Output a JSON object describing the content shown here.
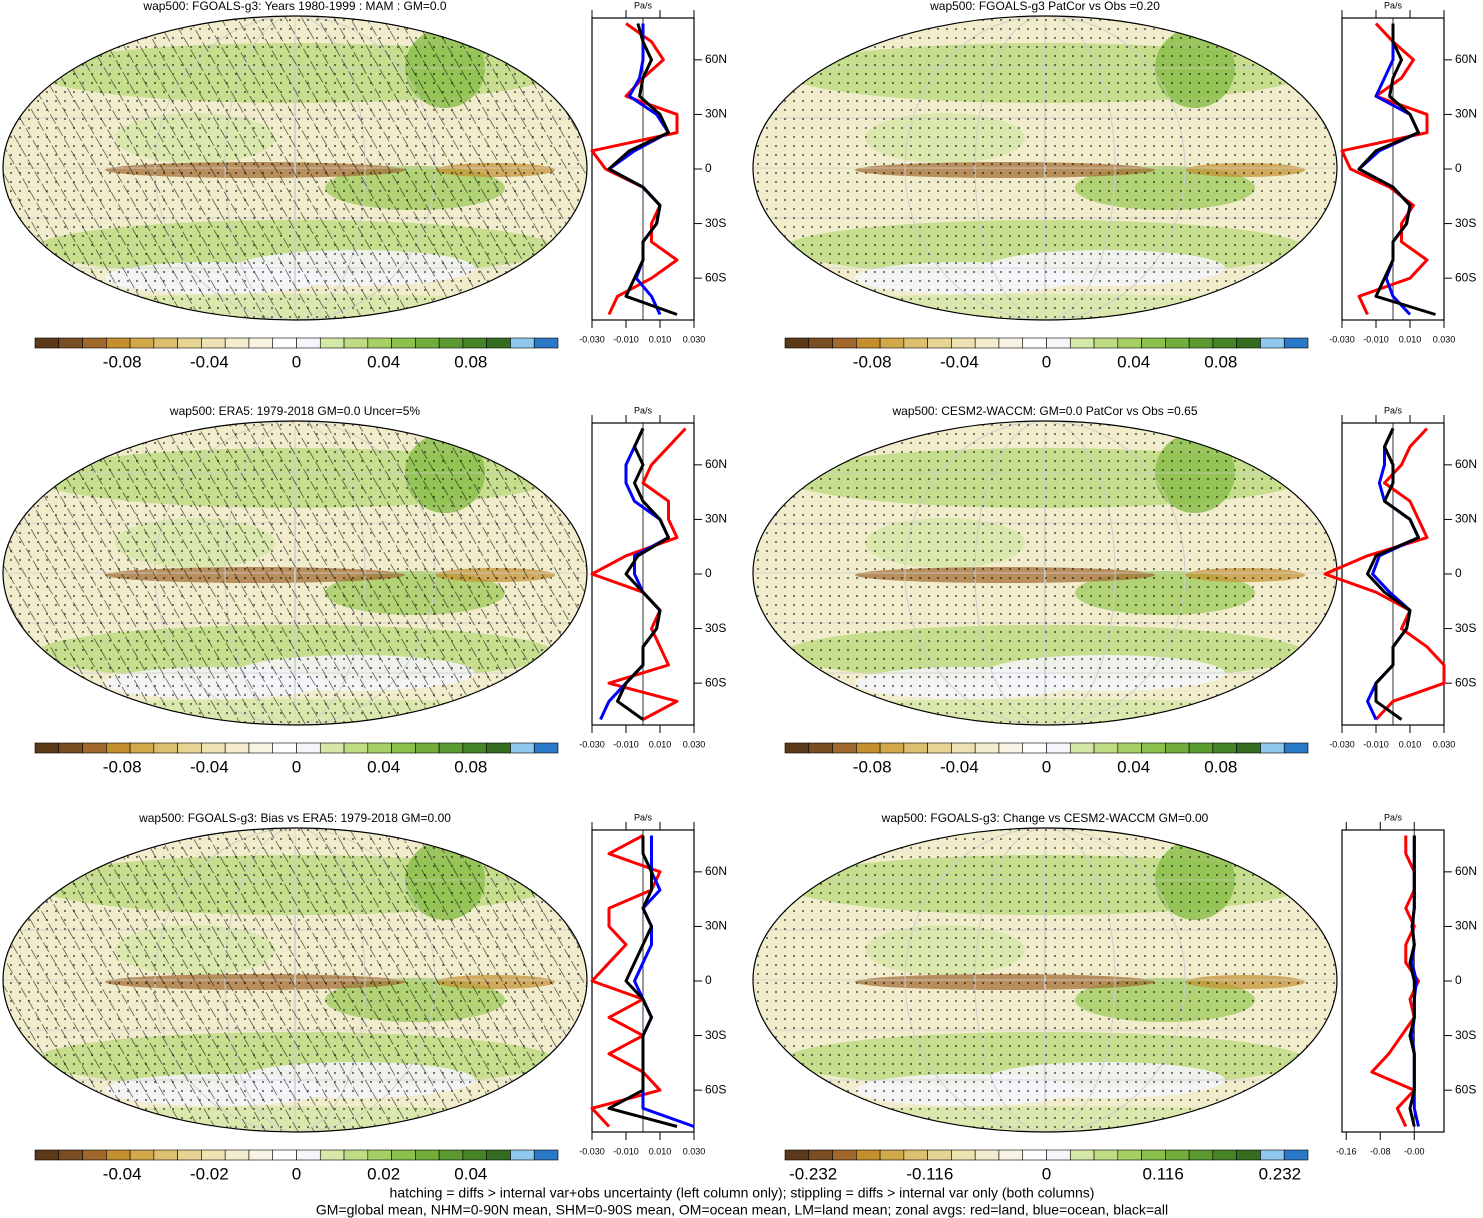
{
  "panels": [
    {
      "title": "wap500: FGOALS-g3: Years 1980-1999 : MAM : GM=0.0",
      "col": 0,
      "row": 0,
      "hatching": true,
      "cbar": {
        "lim": [
          -0.12,
          0.12
        ],
        "ticks": [
          -0.08,
          -0.04,
          0,
          0.04,
          0.08
        ]
      },
      "profile": {
        "unit": "Pa/s",
        "xlim": [
          -0.03,
          0.03
        ],
        "xticks": [
          {
            "value": -0.03,
            "label": "-0.030"
          },
          {
            "value": -0.01,
            "label": "-0.010"
          },
          {
            "value": 0.01,
            "label": "0.010"
          },
          {
            "value": 0.03,
            "label": "0.030"
          }
        ],
        "ylim": [
          -83,
          83
        ],
        "yticks": [
          {
            "value": 60,
            "label": "60N"
          },
          {
            "value": 30,
            "label": "30N"
          },
          0,
          {
            "value": -30,
            "label": "30S"
          },
          {
            "value": -60,
            "label": "60S"
          }
        ],
        "lat": [
          -80,
          -70,
          -60,
          -50,
          -40,
          -30,
          -20,
          -10,
          0,
          10,
          20,
          30,
          40,
          50,
          60,
          70,
          80
        ],
        "series": [
          {
            "color": "#ff0000",
            "values": [
              -0.02,
              -0.015,
              0.005,
              0.02,
              0.005,
              0.005,
              0.01,
              0.0,
              -0.022,
              -0.03,
              0.02,
              0.02,
              -0.01,
              0.0,
              0.012,
              0.005,
              -0.01
            ]
          },
          {
            "color": "#0000ff",
            "values": [
              0.01,
              0.005,
              -0.004,
              0.0,
              0.0,
              0.008,
              0.01,
              0.0,
              -0.02,
              -0.005,
              0.015,
              0.008,
              -0.008,
              -0.002,
              0.0,
              0.0,
              0.0
            ]
          },
          {
            "color": "#000000",
            "values": [
              0.02,
              -0.01,
              -0.005,
              0.0,
              0.0,
              0.008,
              0.01,
              0.0,
              -0.02,
              -0.008,
              0.015,
              0.01,
              -0.002,
              0.0,
              0.005,
              0.0,
              -0.003
            ]
          }
        ]
      }
    },
    {
      "title": "wap500: FGOALS-g3 PatCor vs Obs =0.20",
      "col": 1,
      "row": 0,
      "hatching": false,
      "cbar": {
        "lim": [
          -0.12,
          0.12
        ],
        "ticks": [
          -0.08,
          -0.04,
          0,
          0.04,
          0.08
        ]
      },
      "profile": {
        "unit": "Pa/s",
        "xlim": [
          -0.03,
          0.03
        ],
        "xticks": [
          {
            "value": -0.03,
            "label": "-0.030"
          },
          {
            "value": -0.01,
            "label": "-0.010"
          },
          {
            "value": 0.01,
            "label": "0.010"
          },
          {
            "value": 0.03,
            "label": "0.030"
          }
        ],
        "ylim": [
          -83,
          83
        ],
        "yticks": [
          {
            "value": 60,
            "label": "60N"
          },
          {
            "value": 30,
            "label": "30N"
          },
          0,
          {
            "value": -30,
            "label": "30S"
          },
          {
            "value": -60,
            "label": "60S"
          }
        ],
        "lat": [
          -80,
          -70,
          -60,
          -50,
          -40,
          -30,
          -20,
          -10,
          0,
          10,
          20,
          30,
          40,
          50,
          60,
          70,
          80
        ],
        "series": [
          {
            "color": "#ff0000",
            "values": [
              -0.015,
              -0.02,
              0.01,
              0.02,
              0.005,
              0.005,
              0.012,
              -0.002,
              -0.025,
              -0.03,
              0.02,
              0.02,
              -0.01,
              0.005,
              0.012,
              0.0,
              -0.01
            ]
          },
          {
            "color": "#0000ff",
            "values": [
              0.01,
              0.0,
              -0.004,
              0.0,
              0.0,
              0.008,
              0.01,
              0.0,
              -0.02,
              -0.008,
              0.015,
              0.01,
              -0.01,
              -0.005,
              0.0,
              0.0,
              0.0
            ]
          },
          {
            "color": "#000000",
            "values": [
              0.025,
              -0.01,
              -0.005,
              0.0,
              0.0,
              0.008,
              0.01,
              0.0,
              -0.02,
              -0.01,
              0.015,
              0.01,
              -0.002,
              0.0,
              0.005,
              0.0,
              0.0
            ]
          }
        ]
      }
    },
    {
      "title": "wap500: ERA5: 1979-2018 GM=0.0 Uncer=5%",
      "col": 0,
      "row": 1,
      "hatching": true,
      "cbar": {
        "lim": [
          -0.12,
          0.12
        ],
        "ticks": [
          -0.08,
          -0.04,
          0,
          0.04,
          0.08
        ]
      },
      "profile": {
        "unit": "Pa/s",
        "xlim": [
          -0.03,
          0.03
        ],
        "xticks": [
          {
            "value": -0.03,
            "label": "-0.030"
          },
          {
            "value": -0.01,
            "label": "-0.010"
          },
          {
            "value": 0.01,
            "label": "0.010"
          },
          {
            "value": 0.03,
            "label": "0.030"
          }
        ],
        "ylim": [
          -83,
          83
        ],
        "yticks": [
          {
            "value": 60,
            "label": "60N"
          },
          {
            "value": 30,
            "label": "30N"
          },
          0,
          {
            "value": -30,
            "label": "30S"
          },
          {
            "value": -60,
            "label": "60S"
          }
        ],
        "lat": [
          -80,
          -70,
          -60,
          -50,
          -40,
          -30,
          -20,
          -10,
          0,
          10,
          20,
          30,
          40,
          50,
          60,
          70,
          80
        ],
        "series": [
          {
            "color": "#ff0000",
            "values": [
              0.0,
              0.02,
              -0.02,
              0.015,
              0.01,
              0.005,
              0.01,
              0.0,
              -0.03,
              -0.01,
              0.02,
              0.015,
              0.015,
              0.0,
              0.005,
              0.015,
              0.025
            ]
          },
          {
            "color": "#0000ff",
            "values": [
              -0.025,
              -0.02,
              -0.01,
              0.0,
              0.0,
              0.008,
              0.01,
              0.0,
              -0.005,
              -0.005,
              0.015,
              0.01,
              -0.005,
              -0.01,
              -0.01,
              -0.005,
              0.0
            ]
          },
          {
            "color": "#000000",
            "values": [
              0.0,
              -0.015,
              -0.01,
              0.0,
              0.0,
              0.008,
              0.01,
              0.0,
              -0.01,
              -0.003,
              0.015,
              0.01,
              0.0,
              -0.005,
              0.0,
              -0.005,
              0.0
            ]
          }
        ]
      }
    },
    {
      "title": "wap500: CESM2-WACCM: GM=0.0 PatCor vs Obs =0.65",
      "col": 1,
      "row": 1,
      "hatching": false,
      "cbar": {
        "lim": [
          -0.12,
          0.12
        ],
        "ticks": [
          -0.08,
          -0.04,
          0,
          0.04,
          0.08
        ]
      },
      "profile": {
        "unit": "Pa/s",
        "xlim": [
          -0.03,
          0.03
        ],
        "xticks": [
          {
            "value": -0.03,
            "label": "-0.030"
          },
          {
            "value": -0.01,
            "label": "-0.010"
          },
          {
            "value": 0.01,
            "label": "0.010"
          },
          {
            "value": 0.03,
            "label": "0.030"
          }
        ],
        "ylim": [
          -83,
          83
        ],
        "yticks": [
          {
            "value": 60,
            "label": "60N"
          },
          {
            "value": 30,
            "label": "30N"
          },
          0,
          {
            "value": -30,
            "label": "30S"
          },
          {
            "value": -60,
            "label": "60S"
          }
        ],
        "lat": [
          -80,
          -70,
          -60,
          -50,
          -40,
          -30,
          -20,
          -10,
          0,
          10,
          20,
          30,
          40,
          50,
          60,
          70,
          80
        ],
        "series": [
          {
            "color": "#ff0000",
            "values": [
              -0.01,
              0.0,
              0.03,
              0.03,
              0.02,
              0.005,
              0.01,
              -0.01,
              -0.04,
              -0.015,
              0.02,
              0.015,
              0.01,
              -0.005,
              0.005,
              0.01,
              0.02
            ]
          },
          {
            "color": "#0000ff",
            "values": [
              -0.01,
              -0.015,
              -0.01,
              0.0,
              0.0,
              0.008,
              0.01,
              -0.002,
              -0.012,
              -0.008,
              0.015,
              0.01,
              -0.005,
              -0.008,
              -0.005,
              -0.005,
              0.0
            ]
          },
          {
            "color": "#000000",
            "values": [
              0.005,
              -0.01,
              -0.01,
              0.0,
              0.0,
              0.008,
              0.01,
              -0.005,
              -0.015,
              -0.01,
              0.015,
              0.01,
              -0.005,
              0.0,
              0.0,
              -0.005,
              0.0
            ]
          }
        ]
      }
    },
    {
      "title": "wap500: FGOALS-g3: Bias vs ERA5: 1979-2018 GM=0.00",
      "col": 0,
      "row": 2,
      "hatching": true,
      "cbar": {
        "lim": [
          -0.06,
          0.06
        ],
        "ticks": [
          -0.04,
          -0.02,
          0,
          0.02,
          0.04
        ]
      },
      "profile": {
        "unit": "Pa/s",
        "xlim": [
          -0.03,
          0.03
        ],
        "xticks": [
          {
            "value": -0.03,
            "label": "-0.030"
          },
          {
            "value": -0.01,
            "label": "-0.010"
          },
          {
            "value": 0.01,
            "label": "0.010"
          },
          {
            "value": 0.03,
            "label": "0.030"
          }
        ],
        "ylim": [
          -83,
          83
        ],
        "yticks": [
          {
            "value": 60,
            "label": "60N"
          },
          {
            "value": 30,
            "label": "30N"
          },
          0,
          {
            "value": -30,
            "label": "30S"
          },
          {
            "value": -60,
            "label": "60S"
          }
        ],
        "lat": [
          -80,
          -70,
          -60,
          -50,
          -40,
          -30,
          -20,
          -10,
          0,
          10,
          20,
          30,
          40,
          50,
          60,
          70,
          80
        ],
        "series": [
          {
            "color": "#ff0000",
            "values": [
              -0.02,
              -0.03,
              0.01,
              0.0,
              -0.02,
              0.0,
              -0.02,
              0.0,
              -0.03,
              -0.02,
              -0.01,
              -0.02,
              -0.02,
              0.005,
              0.01,
              -0.02,
              0.0
            ]
          },
          {
            "color": "#0000ff",
            "values": [
              0.03,
              0.0,
              0.0,
              0.0,
              0.0,
              0.0,
              0.005,
              0.0,
              -0.005,
              0.0,
              0.005,
              0.005,
              0.0,
              0.01,
              0.005,
              0.005,
              0.005
            ]
          },
          {
            "color": "#000000",
            "values": [
              0.02,
              -0.02,
              0.0,
              0.0,
              0.0,
              0.0,
              0.005,
              0.0,
              -0.01,
              -0.005,
              0.0,
              0.005,
              0.0,
              0.005,
              0.005,
              0.0,
              0.0
            ]
          }
        ]
      }
    },
    {
      "title": "wap500: FGOALS-g3: Change vs CESM2-WACCM GM=0.00",
      "col": 1,
      "row": 2,
      "hatching": false,
      "cbar": {
        "lim": [
          -0.26,
          0.26
        ],
        "ticks": [
          -0.232,
          -0.116,
          0,
          0.116,
          0.232
        ]
      },
      "profile": {
        "unit": "Pa/s",
        "xlim": [
          -0.17,
          0.07
        ],
        "xticks": [
          -0.16,
          -0.08,
          {
            "value": 0,
            "label": "-0.00"
          }
        ],
        "ylim": [
          -83,
          83
        ],
        "yticks": [
          {
            "value": 60,
            "label": "60N"
          },
          {
            "value": 30,
            "label": "30N"
          },
          0,
          {
            "value": -30,
            "label": "30S"
          },
          {
            "value": -60,
            "label": "60S"
          }
        ],
        "lat": [
          -80,
          -70,
          -60,
          -50,
          -40,
          -30,
          -20,
          -10,
          0,
          10,
          20,
          30,
          40,
          50,
          60,
          70,
          80
        ],
        "series": [
          {
            "color": "#ff0000",
            "values": [
              -0.02,
              -0.04,
              0.0,
              -0.1,
              -0.06,
              -0.03,
              0.0,
              -0.01,
              0.01,
              -0.02,
              -0.02,
              0.0,
              -0.02,
              0.0,
              0.0,
              -0.02,
              -0.02
            ]
          },
          {
            "color": "#0000ff",
            "values": [
              0.01,
              0.0,
              0.0,
              0.0,
              0.0,
              -0.005,
              0.0,
              0.0,
              0.005,
              -0.005,
              0.0,
              -0.005,
              0.0,
              0.0,
              0.0,
              0.0,
              0.0
            ]
          },
          {
            "color": "#000000",
            "values": [
              0.0,
              -0.01,
              0.0,
              0.0,
              0.0,
              -0.01,
              0.0,
              0.0,
              0.0,
              -0.01,
              0.0,
              -0.005,
              0.0,
              0.0,
              0.0,
              0.0,
              0.0
            ]
          }
        ]
      }
    }
  ],
  "colors": [
    "#5a3818",
    "#7b4d22",
    "#a0682c",
    "#c48f2e",
    "#d1a84a",
    "#dcc070",
    "#e6d494",
    "#ede2b2",
    "#f3ecce",
    "#f7f4e4",
    "#ffffff",
    "#f4f6fb",
    "#d6e8a8",
    "#bedc84",
    "#a6cf66",
    "#8cc04c",
    "#72ad3c",
    "#5a9a30",
    "#468428",
    "#346c20",
    "#8ec8ec",
    "#2a78c8"
  ],
  "footer": [
    "hatching = diffs > internal var+obs uncertainty (left column only); stippling = diffs > internal var only (both columns)",
    "GM=global mean, NHM=0-90N mean, SHM=0-90S mean, OM=ocean mean, LM=land mean; zonal avgs: red=land, blue=ocean, black=all"
  ]
}
